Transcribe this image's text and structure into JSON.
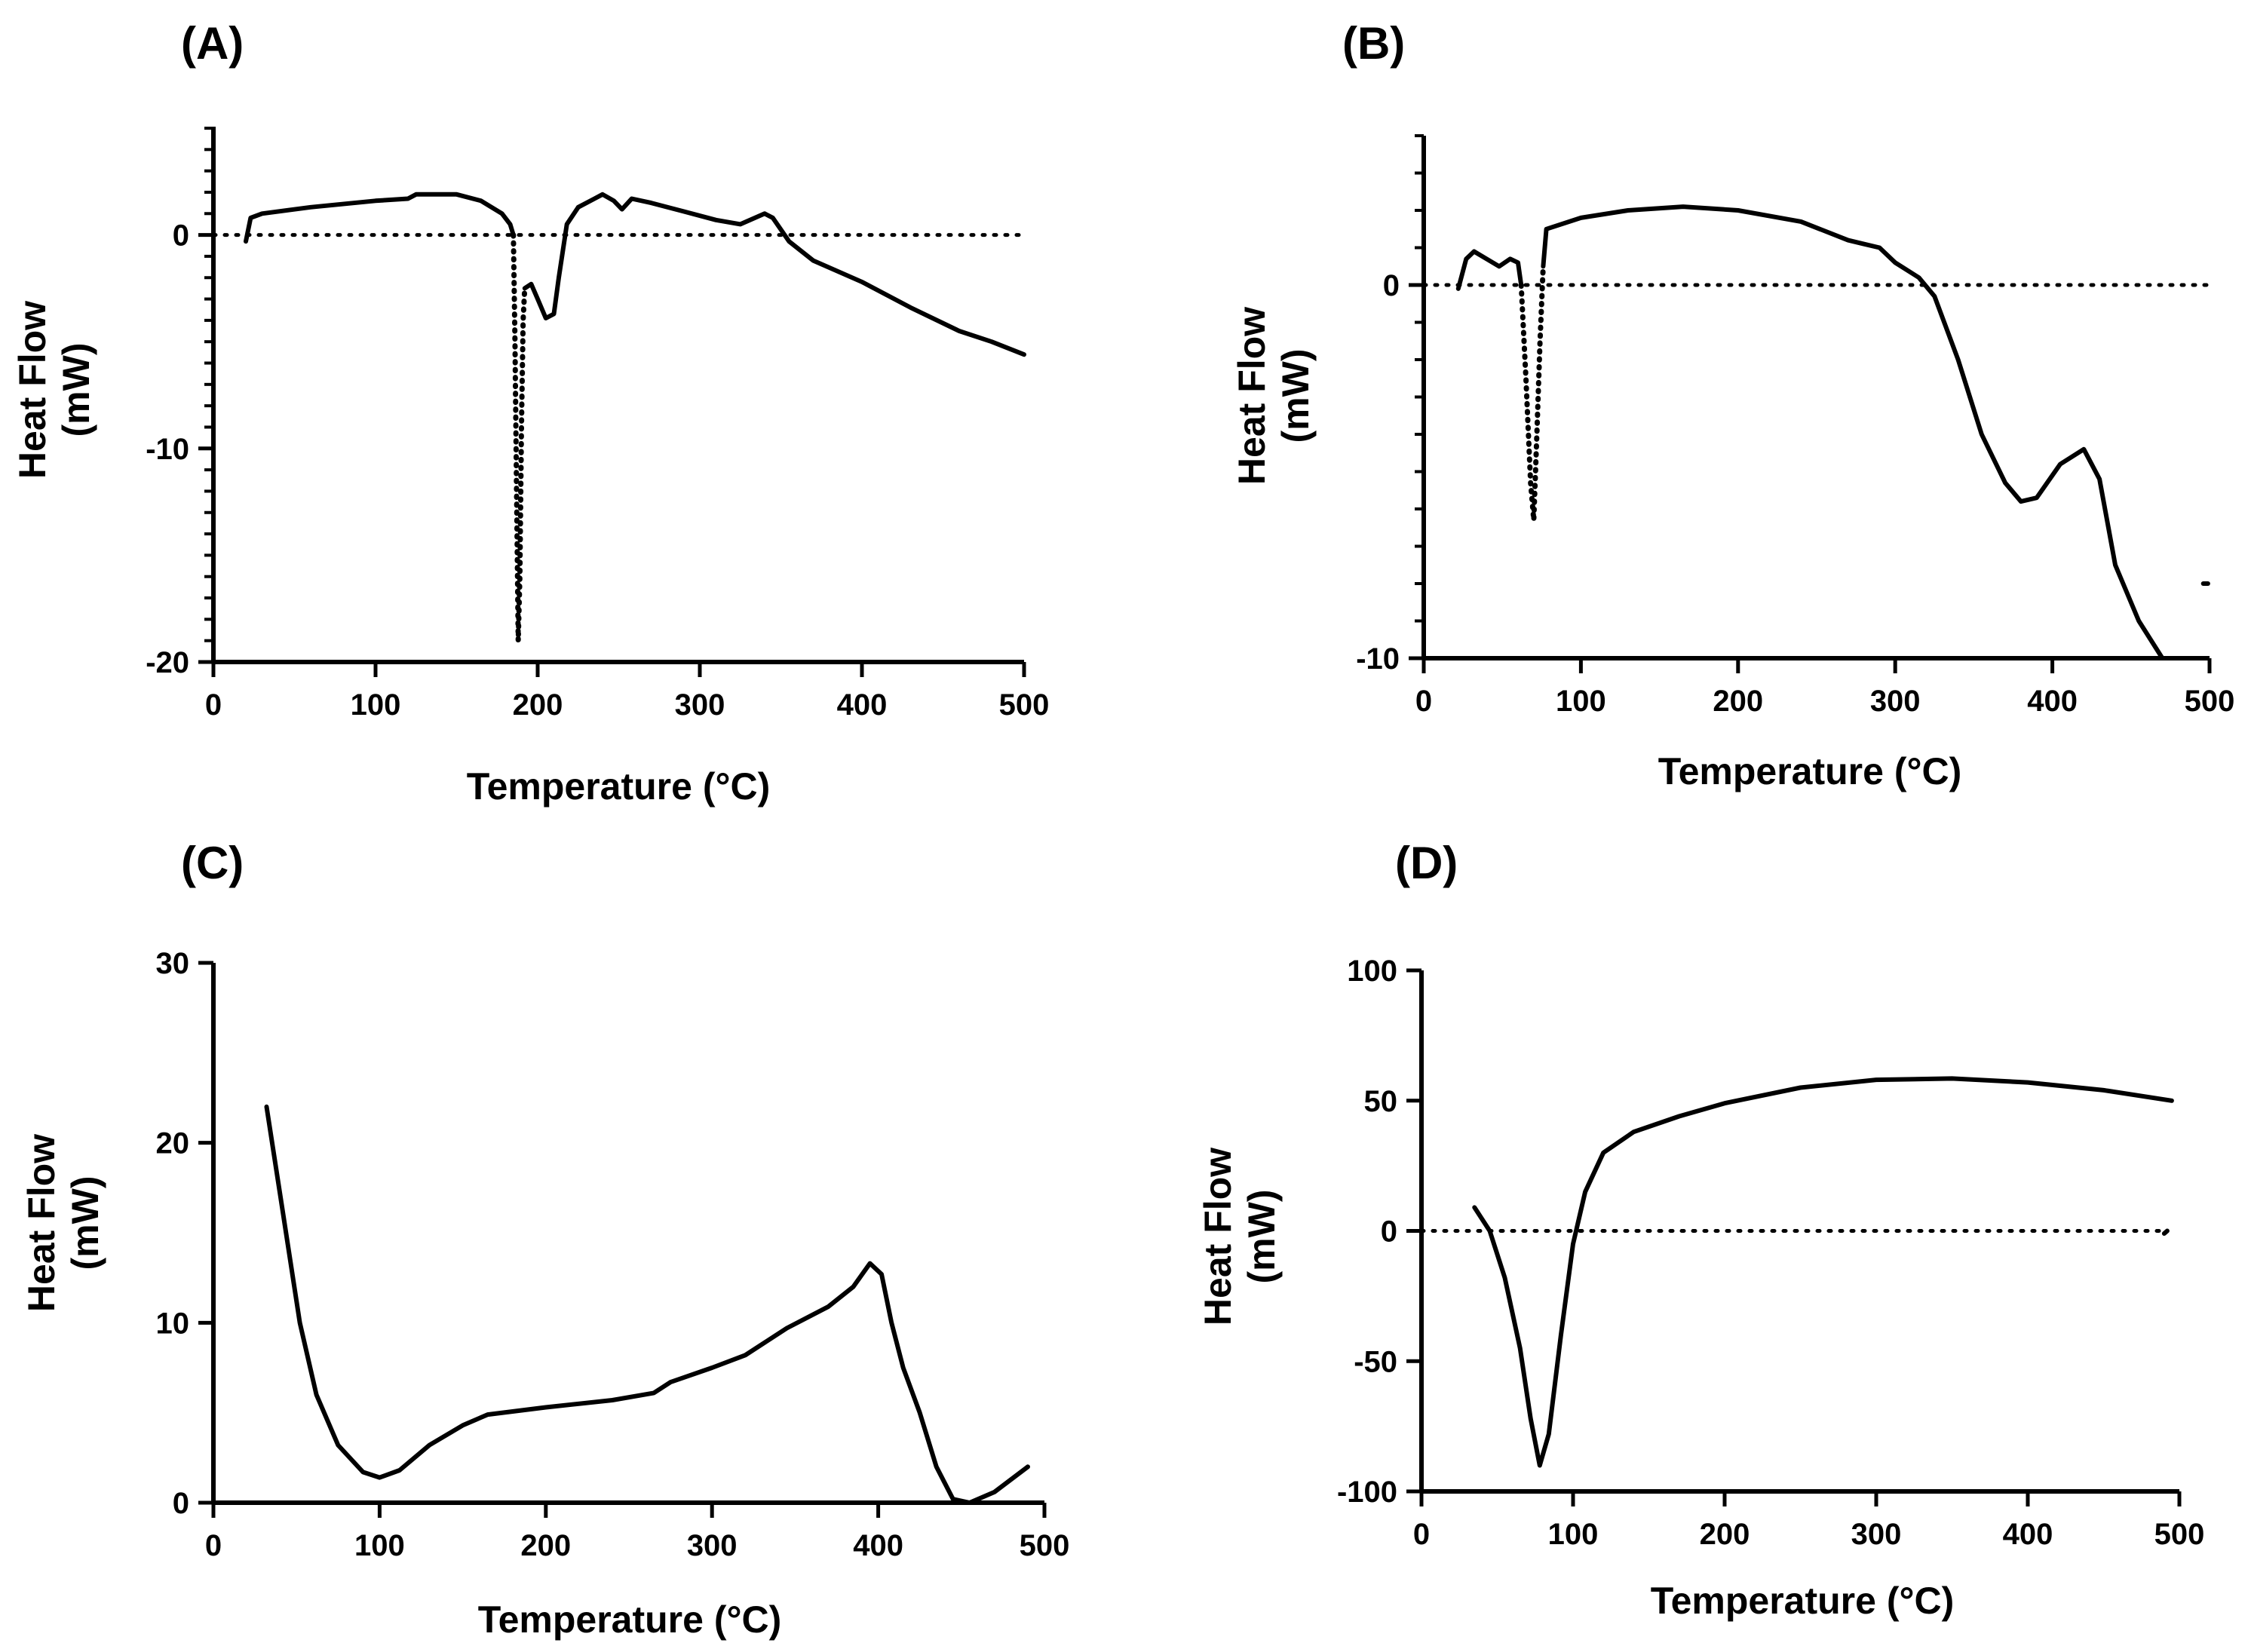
{
  "chart_data": [
    {
      "id": "A",
      "type": "line",
      "title": "(A)",
      "xlabel": "Temperature (°C)",
      "ylabel_lines": [
        "Heat Flow",
        "(mW)"
      ],
      "xlim": [
        0,
        500
      ],
      "ylim": [
        -20,
        5
      ],
      "xticks": [
        0,
        100,
        200,
        300,
        400,
        500
      ],
      "yticks": [
        -20,
        -10,
        0
      ],
      "yminor": 1,
      "zero_line_x": [
        0,
        500
      ],
      "series": [
        {
          "name": "heat flow",
          "style": "solid",
          "points": [
            [
              20,
              -0.3
            ],
            [
              23,
              0.8
            ],
            [
              30,
              1.0
            ],
            [
              60,
              1.3
            ],
            [
              100,
              1.6
            ],
            [
              120,
              1.7
            ],
            [
              125,
              1.9
            ],
            [
              150,
              1.9
            ],
            [
              165,
              1.6
            ],
            [
              178,
              1.0
            ],
            [
              183,
              0.5
            ],
            [
              185,
              0
            ]
          ]
        },
        {
          "name": "heat flow",
          "style": "dotted",
          "points": [
            [
              185,
              0
            ],
            [
              186,
              -5
            ],
            [
              187,
              -12
            ],
            [
              188,
              -19
            ],
            [
              189,
              -16
            ],
            [
              190,
              -9
            ],
            [
              191,
              -4
            ],
            [
              192,
              -2.5
            ]
          ]
        },
        {
          "name": "heat flow",
          "style": "solid",
          "points": [
            [
              192,
              -2.5
            ],
            [
              196,
              -2.3
            ],
            [
              200,
              -3
            ],
            [
              205,
              -3.9
            ],
            [
              210,
              -3.7
            ],
            [
              213,
              -2
            ],
            [
              218,
              0.5
            ],
            [
              225,
              1.3
            ],
            [
              235,
              1.7
            ],
            [
              240,
              1.9
            ],
            [
              247,
              1.6
            ],
            [
              252,
              1.2
            ],
            [
              258,
              1.7
            ],
            [
              270,
              1.5
            ],
            [
              290,
              1.1
            ],
            [
              310,
              0.7
            ],
            [
              325,
              0.5
            ],
            [
              340,
              1.0
            ],
            [
              345,
              0.8
            ],
            [
              355,
              -0.3
            ],
            [
              370,
              -1.2
            ],
            [
              400,
              -2.2
            ],
            [
              430,
              -3.4
            ],
            [
              460,
              -4.5
            ],
            [
              480,
              -5.0
            ],
            [
              500,
              -5.6
            ]
          ]
        }
      ]
    },
    {
      "id": "B",
      "type": "line",
      "title": "(B)",
      "xlabel": "Temperature (°C)",
      "ylabel_lines": [
        "Heat Flow",
        "(mW)"
      ],
      "xlim": [
        0,
        500
      ],
      "ylim": [
        -10,
        4
      ],
      "xticks": [
        0,
        100,
        200,
        300,
        400,
        500
      ],
      "yticks": [
        -10,
        0
      ],
      "yminor": 1,
      "zero_line_x": [
        0,
        500
      ],
      "series": [
        {
          "name": "heat flow",
          "style": "solid",
          "points": [
            [
              22,
              -0.1
            ],
            [
              27,
              0.7
            ],
            [
              32,
              0.9
            ],
            [
              40,
              0.7
            ],
            [
              48,
              0.5
            ],
            [
              55,
              0.7
            ],
            [
              60,
              0.6
            ],
            [
              62,
              0
            ]
          ]
        },
        {
          "name": "heat flow",
          "style": "dotted",
          "points": [
            [
              62,
              0
            ],
            [
              65,
              -2.5
            ],
            [
              68,
              -5.3
            ],
            [
              70,
              -6.3
            ],
            [
              72,
              -4
            ],
            [
              74,
              -1.5
            ],
            [
              76,
              0.5
            ]
          ]
        },
        {
          "name": "heat flow",
          "style": "solid",
          "points": [
            [
              76,
              0.5
            ],
            [
              78,
              1.5
            ],
            [
              100,
              1.8
            ],
            [
              130,
              2.0
            ],
            [
              165,
              2.1
            ],
            [
              200,
              2.0
            ],
            [
              240,
              1.7
            ],
            [
              270,
              1.2
            ],
            [
              280,
              1.1
            ],
            [
              290,
              1.0
            ],
            [
              300,
              0.6
            ],
            [
              315,
              0.2
            ],
            [
              325,
              -0.3
            ],
            [
              340,
              -2.0
            ],
            [
              355,
              -4.0
            ],
            [
              370,
              -5.3
            ],
            [
              380,
              -5.8
            ],
            [
              390,
              -5.7
            ],
            [
              405,
              -4.8
            ],
            [
              420,
              -4.4
            ],
            [
              430,
              -5.2
            ],
            [
              440,
              -7.5
            ],
            [
              455,
              -9.0
            ],
            [
              470,
              -10
            ]
          ]
        },
        {
          "name": "heat flow end",
          "style": "solid",
          "points": [
            [
              496,
              -8.0
            ],
            [
              499,
              -8.0
            ]
          ]
        }
      ]
    },
    {
      "id": "C",
      "type": "line",
      "title": "(C)",
      "xlabel": "Temperature (°C)",
      "ylabel_lines": [
        "Heat Flow",
        "(mW)"
      ],
      "xlim": [
        0,
        500
      ],
      "ylim": [
        0,
        30
      ],
      "xticks": [
        0,
        100,
        200,
        300,
        400,
        500
      ],
      "yticks": [
        0,
        10,
        20,
        30
      ],
      "yminor": 0,
      "series": [
        {
          "name": "heat flow",
          "style": "solid",
          "points": [
            [
              32,
              22
            ],
            [
              42,
              16
            ],
            [
              52,
              10
            ],
            [
              62,
              6
            ],
            [
              75,
              3.2
            ],
            [
              90,
              1.7
            ],
            [
              100,
              1.4
            ],
            [
              112,
              1.8
            ],
            [
              130,
              3.2
            ],
            [
              150,
              4.3
            ],
            [
              165,
              4.9
            ],
            [
              200,
              5.3
            ],
            [
              240,
              5.7
            ],
            [
              265,
              6.1
            ],
            [
              275,
              6.7
            ],
            [
              300,
              7.5
            ],
            [
              320,
              8.2
            ],
            [
              345,
              9.7
            ],
            [
              370,
              10.9
            ],
            [
              385,
              12
            ],
            [
              395,
              13.3
            ],
            [
              402,
              12.7
            ],
            [
              408,
              10
            ],
            [
              415,
              7.5
            ],
            [
              425,
              5
            ],
            [
              435,
              2
            ],
            [
              445,
              0.2
            ],
            [
              455,
              0
            ],
            [
              470,
              0.6
            ],
            [
              490,
              2.0
            ]
          ]
        }
      ]
    },
    {
      "id": "D",
      "type": "line",
      "title": "(D)",
      "xlabel": "Temperature (°C)",
      "ylabel_lines": [
        "Heat Flow",
        "(mW)"
      ],
      "xlim": [
        0,
        500
      ],
      "ylim": [
        -100,
        100
      ],
      "xticks": [
        0,
        100,
        200,
        300,
        400,
        500
      ],
      "yticks": [
        -100,
        -50,
        0,
        50,
        100
      ],
      "yminor": 0,
      "zero_line_x": [
        0,
        490
      ],
      "series": [
        {
          "name": "heat flow",
          "style": "solid",
          "points": [
            [
              35,
              9
            ],
            [
              45,
              0
            ],
            [
              55,
              -18
            ],
            [
              65,
              -45
            ],
            [
              72,
              -72
            ],
            [
              78,
              -90
            ],
            [
              84,
              -78
            ],
            [
              92,
              -40
            ],
            [
              100,
              -5
            ],
            [
              108,
              15
            ],
            [
              120,
              30
            ],
            [
              140,
              38
            ],
            [
              170,
              44
            ],
            [
              200,
              49
            ],
            [
              250,
              55
            ],
            [
              300,
              58
            ],
            [
              350,
              58.5
            ],
            [
              400,
              57
            ],
            [
              450,
              54
            ],
            [
              495,
              50
            ]
          ]
        },
        {
          "name": "heat flow end",
          "style": "solid",
          "points": [
            [
              490,
              -1
            ],
            [
              492,
              0
            ]
          ]
        }
      ]
    }
  ]
}
